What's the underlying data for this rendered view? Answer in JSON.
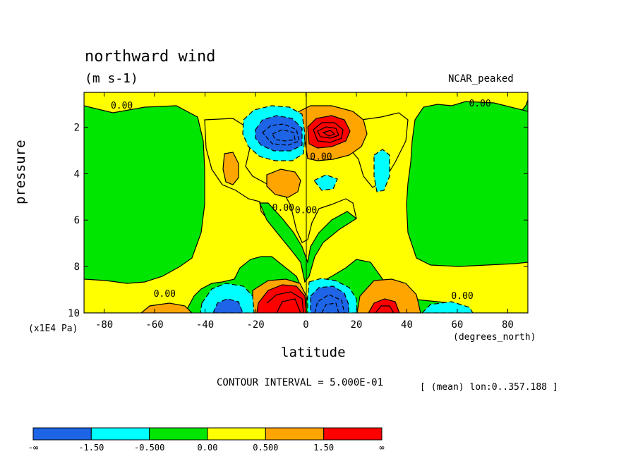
{
  "chart_data": {
    "type": "contour",
    "title": "northward wind",
    "units": "(m s-1)",
    "dataset": "NCAR_peaked",
    "xlabel": "latitude",
    "x_units": "(degrees_north)",
    "ylabel": "pressure",
    "y_units": "(x1E4 Pa)",
    "xlim": [
      -88,
      88
    ],
    "ylim": [
      10,
      0.5
    ],
    "x_ticks": [
      "-80",
      "-60",
      "-40",
      "-20",
      "0",
      "20",
      "40",
      "60",
      "80"
    ],
    "x_tick_values": [
      -80,
      -60,
      -40,
      -20,
      0,
      20,
      40,
      60,
      80
    ],
    "y_ticks": [
      "2",
      "4",
      "6",
      "8",
      "10"
    ],
    "y_tick_values": [
      2,
      4,
      6,
      8,
      10
    ],
    "contour_interval": "CONTOUR INTERVAL = 5.000E-01",
    "mean_note": "[ (mean) lon:0..357.188 ]",
    "contour_labels": [
      {
        "text": "0.00",
        "lat": -73,
        "p": 1.2
      },
      {
        "text": "0.00",
        "lat": 69,
        "p": 1.1
      },
      {
        "text": "0.00",
        "lat": 6,
        "p": 3.4
      },
      {
        "text": "0.00",
        "lat": -9,
        "p": 5.6
      },
      {
        "text": "0.00",
        "lat": 0,
        "p": 5.7
      },
      {
        "text": "0.00",
        "lat": -56,
        "p": 9.3
      },
      {
        "text": "0.00",
        "lat": 62,
        "p": 9.4
      }
    ],
    "colorbar": {
      "bins": [
        {
          "lo": "-∞",
          "hi": "-1.50",
          "color": "#1d64e6"
        },
        {
          "lo": "-1.50",
          "hi": "-0.500",
          "color": "#00ffff"
        },
        {
          "lo": "-0.500",
          "hi": "0.00",
          "color": "#00e600"
        },
        {
          "lo": "0.00",
          "hi": "0.500",
          "color": "#ffff00"
        },
        {
          "lo": "0.500",
          "hi": "1.50",
          "color": "#ffa500"
        },
        {
          "lo": "1.50",
          "hi": "∞",
          "color": "#ff0000"
        }
      ],
      "labels": [
        "-∞",
        "-1.50",
        "-0.500",
        "0.00",
        "0.500",
        "1.50",
        "∞"
      ]
    },
    "features": [
      {
        "desc": "negative core",
        "lat": -8,
        "p": 1.9,
        "value": -2.0,
        "fill": "#1d64e6"
      },
      {
        "desc": "positive core",
        "lat": 7,
        "p": 1.9,
        "value": 2.0,
        "fill": "#ff0000"
      },
      {
        "desc": "negative core",
        "lat": 6,
        "p": 9.6,
        "value": -2.0,
        "fill": "#1d64e6"
      },
      {
        "desc": "positive core",
        "lat": -8,
        "p": 9.6,
        "value": 2.0,
        "fill": "#ff0000"
      },
      {
        "desc": "positive core",
        "lat": 31,
        "p": 9.8,
        "value": 1.6,
        "fill": "#ff0000"
      },
      {
        "desc": "negative core",
        "lat": -32,
        "p": 9.8,
        "value": -1.6,
        "fill": "#1d64e6"
      }
    ]
  }
}
